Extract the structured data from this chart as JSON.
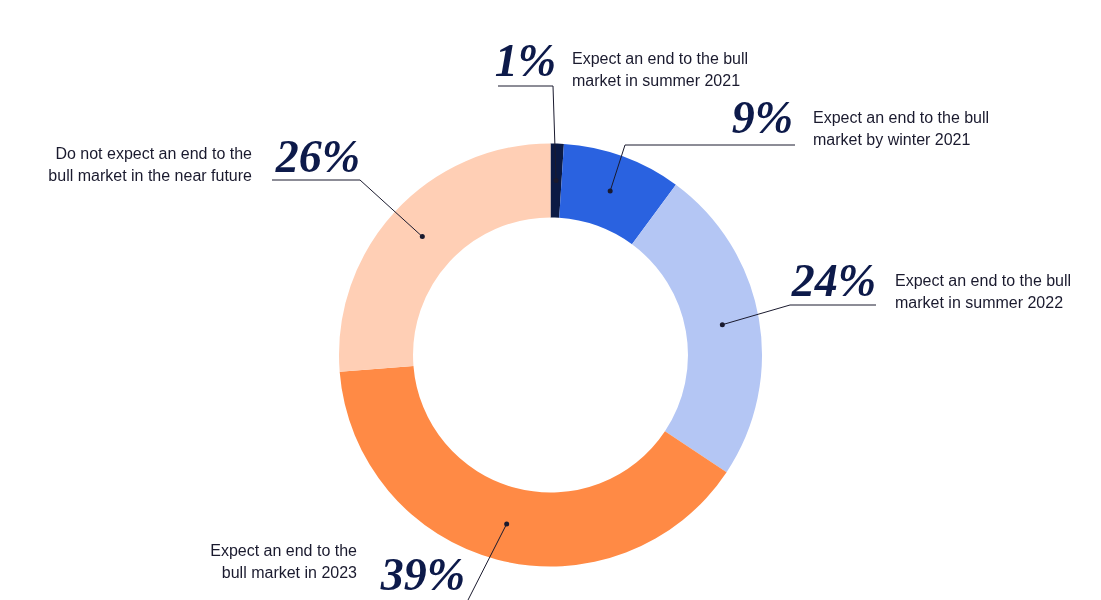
{
  "chart_data": {
    "type": "donut",
    "categories": [
      "Expect an end to the bull market in summer 2021",
      "Expect an end to the bull market by winter 2021",
      "Expect an end to the bull market in summer 2022",
      "Expect an end to the bull market in 2023",
      "Do not expect an end to the bull market in the near future"
    ],
    "values": [
      1,
      9,
      24,
      39,
      26
    ],
    "value_labels": [
      "1%",
      "9%",
      "24%",
      "39%",
      "26%"
    ],
    "colors": [
      "#0b1a44",
      "#2a62e0",
      "#b4c6f4",
      "#ff8a45",
      "#ffcfb5"
    ]
  }
}
